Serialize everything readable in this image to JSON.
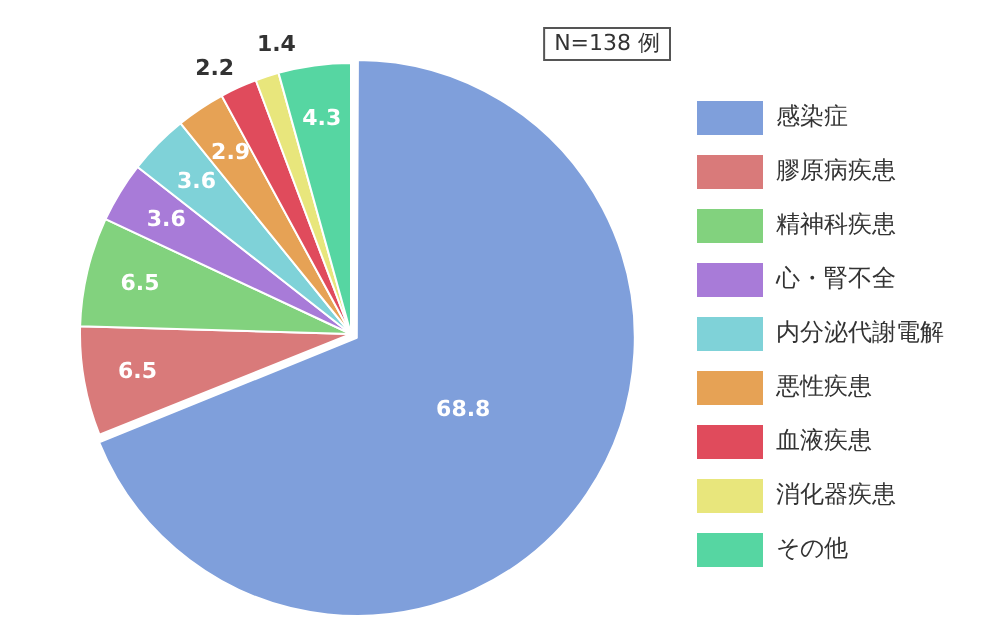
{
  "chart_data": {
    "type": "pie",
    "categories": [
      "感染症",
      "膠原病疾患",
      "精神科疾患",
      "心・腎不全",
      "内分泌代謝電解",
      "悪性疾患",
      "血液疾患",
      "消化器疾患",
      "その他"
    ],
    "values": [
      68.8,
      6.5,
      6.5,
      3.6,
      3.6,
      2.9,
      2.2,
      1.4,
      4.3
    ],
    "colors": [
      "#7f9fdb",
      "#d97a7a",
      "#82d27e",
      "#a87bd8",
      "#7fd2d8",
      "#e6a255",
      "#e04b5c",
      "#e8e67c",
      "#56d6a2"
    ],
    "data_labels": true,
    "legend": "right",
    "annotations": [
      "N=138 例"
    ]
  }
}
